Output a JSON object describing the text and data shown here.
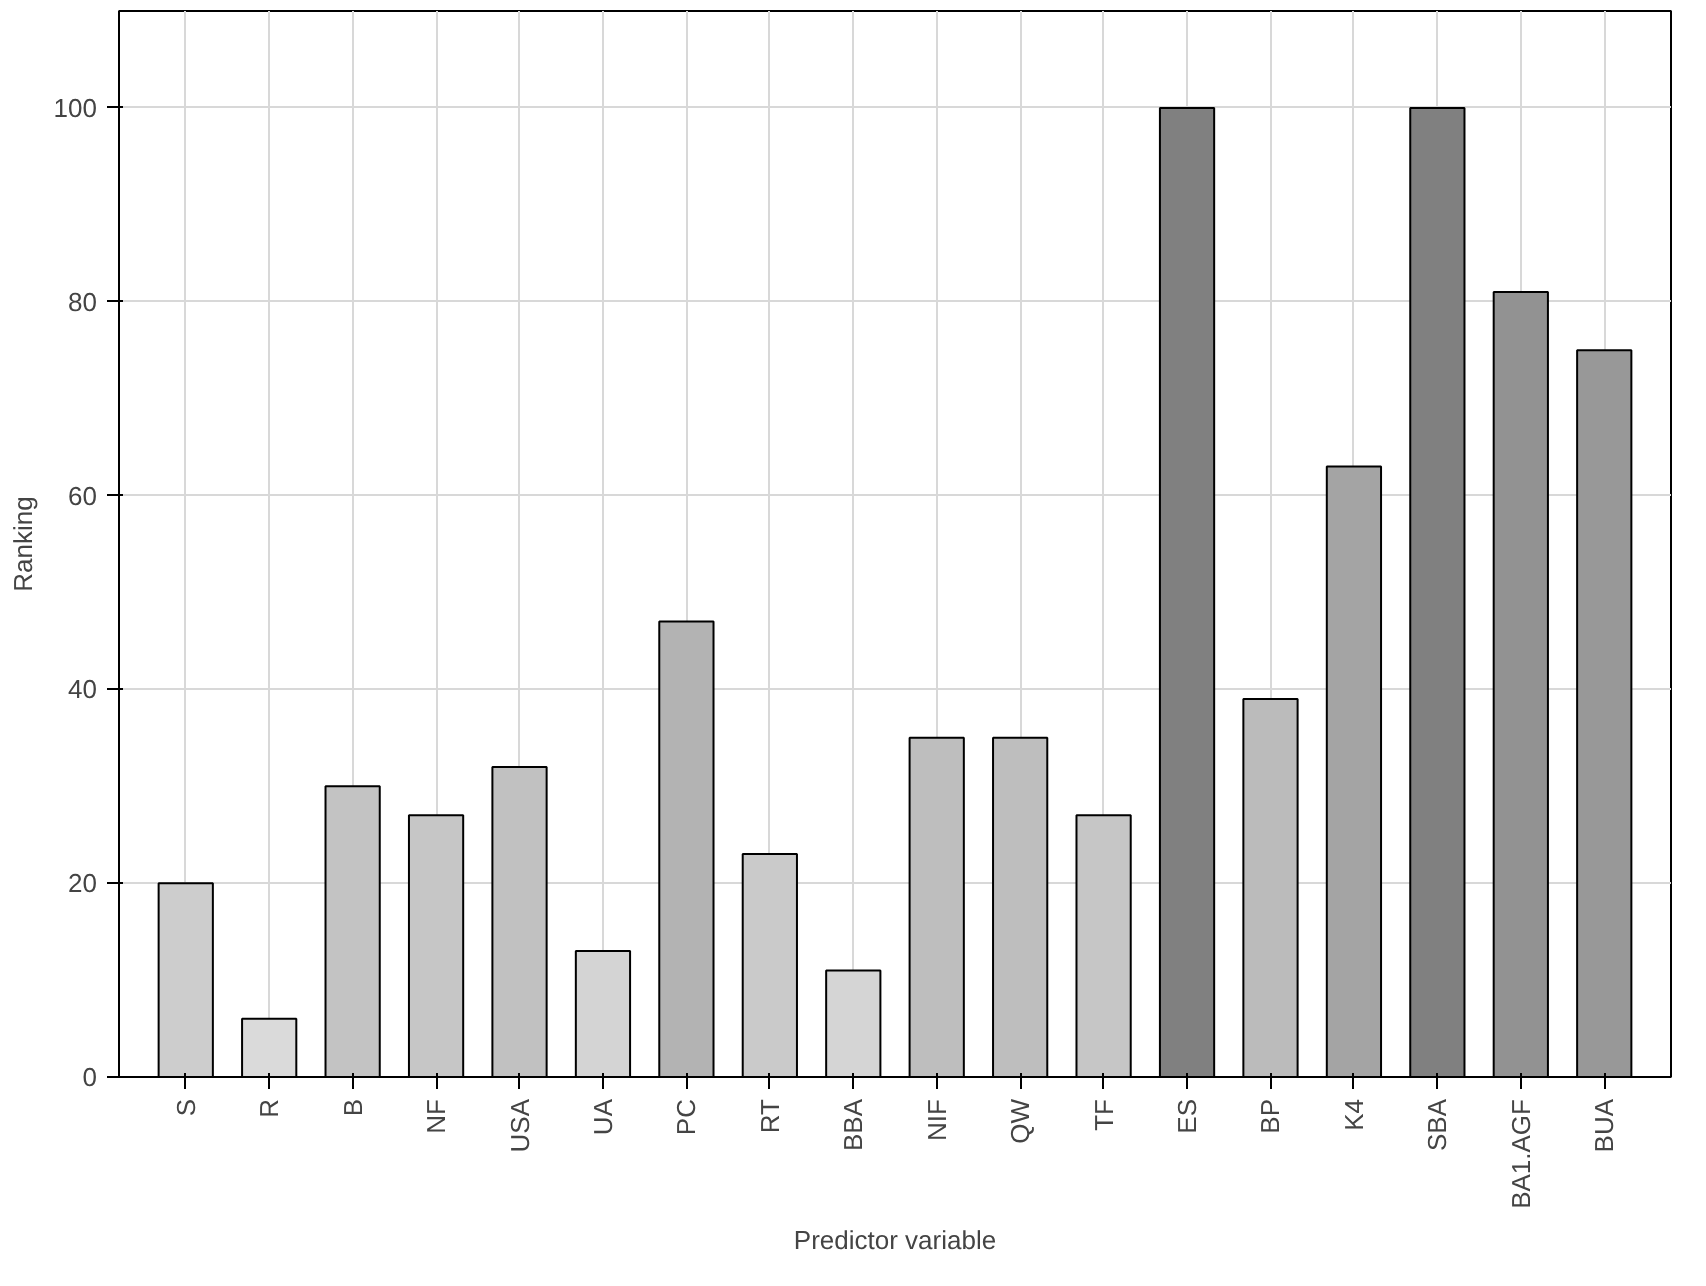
{
  "chart_data": {
    "type": "bar",
    "xlabel": "Predictor variable",
    "ylabel": "Ranking",
    "categories": [
      "S",
      "R",
      "B",
      "NF",
      "USA",
      "UA",
      "PC",
      "RT",
      "BBA",
      "NIF",
      "QW",
      "TF",
      "ES",
      "BP",
      "K4",
      "SBA",
      "BA1.AGF",
      "BUA"
    ],
    "values": [
      20,
      6,
      30,
      27,
      32,
      13,
      47,
      23,
      11,
      35,
      35,
      27,
      100,
      39,
      63,
      100,
      81,
      75
    ],
    "colors": [
      "#cdcdcd",
      "#dadada",
      "#c3c3c3",
      "#c6c6c6",
      "#c1c1c1",
      "#d4d4d4",
      "#b3b3b3",
      "#cacaca",
      "#d5d5d5",
      "#bebebe",
      "#bebebe",
      "#c6c6c6",
      "#808080",
      "#bbbbbb",
      "#a4a4a4",
      "#808080",
      "#929292",
      "#989898"
    ],
    "ylim": [
      0,
      110
    ],
    "yticks": [
      0,
      20,
      40,
      60,
      80,
      100
    ],
    "grid": true
  }
}
